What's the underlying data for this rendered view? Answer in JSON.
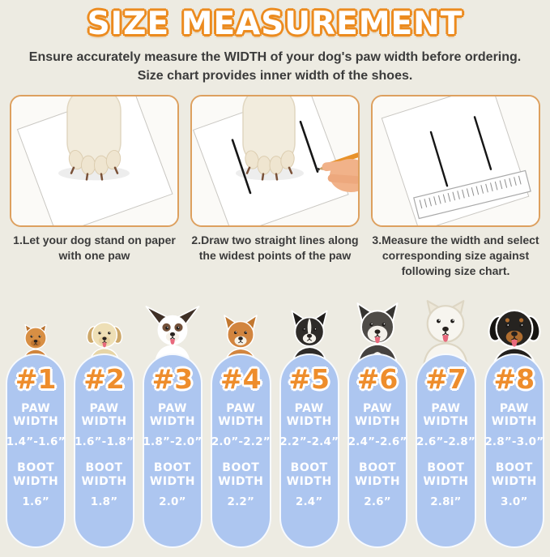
{
  "colors": {
    "background": "#edebe2",
    "accent_orange": "#ec8b1f",
    "number_orange": "#ee8d2c",
    "panel_border": "#dda05f",
    "pill_blue": "#adc6f0",
    "text_gray": "#3b3b3b",
    "pill_text": "#ffffff"
  },
  "title": {
    "text": "SIZE MEASUREMENT"
  },
  "intro": {
    "text": "Ensure accurately measure the WIDTH of your dog's paw width before ordering.\nSize chart provides inner width of the shoes."
  },
  "steps": [
    {
      "illustration": "dog-paw-on-paper-photo",
      "caption": "1.Let your dog stand on paper\nwith one paw"
    },
    {
      "illustration": "hand-drawing-lines-photo",
      "caption": "2.Draw two straight lines along\nthe widest points of the paw"
    },
    {
      "illustration": "ruler-measuring-photo",
      "caption": "3.Measure the width and select\ncorresponding size against\nfollowing size chart."
    }
  ],
  "size_chart": {
    "paw_label": "PAW\nWIDTH",
    "boot_label": "BOOT\nWIDTH",
    "columns": [
      {
        "size": "#1",
        "paw_width": "1.4”-1.6”",
        "boot_width": "1.6”",
        "dog": {
          "breed": "pomeranian",
          "earStyle": "small",
          "body": "#d0853d",
          "head": "#d88f44",
          "ear": "#b9722f",
          "muzzle": "#c07631",
          "tongue": false
        }
      },
      {
        "size": "#2",
        "paw_width": "1.6”-1.8”",
        "boot_width": "1.8”",
        "dog": {
          "breed": "golden-retriever-puppy",
          "earStyle": "floppy",
          "body": "#e7d5a6",
          "head": "#eedfb6",
          "ear": "#cda768",
          "muzzle": "#e6d0a0",
          "tongue": true
        }
      },
      {
        "size": "#3",
        "paw_width": "1.8”-2.0”",
        "boot_width": "2.0”",
        "dog": {
          "breed": "papillon",
          "earStyle": "wing",
          "body": "#ffffff",
          "head": "#ffffff",
          "ear": "#3f3026",
          "muzzle": "#f6f1e8",
          "eyePatch": "#73513a",
          "tongue": true
        }
      },
      {
        "size": "#4",
        "paw_width": "2.0”-2.2”",
        "boot_width": "2.2”",
        "dog": {
          "breed": "shiba-inu",
          "earStyle": "pointy",
          "body": "#d2853f",
          "head": "#d2853f",
          "ear": "#c2772f",
          "muzzle": "#f6f1e6",
          "chest": "#f6f1e6",
          "tongue": false
        }
      },
      {
        "size": "#5",
        "paw_width": "2.2”-2.4”",
        "boot_width": "2.4”",
        "dog": {
          "breed": "border-collie",
          "earStyle": "pointy",
          "body": "#2e2b28",
          "head": "#2e2b28",
          "ear": "#1f1d1b",
          "blaze": "#f4f1ea",
          "muzzle": "#f4f1ea",
          "chest": "#f4f1ea",
          "tongue": false
        }
      },
      {
        "size": "#6",
        "paw_width": "2.4”-2.6”",
        "boot_width": "2.6”",
        "dog": {
          "breed": "husky",
          "earStyle": "pointy",
          "body": "#454240",
          "head": "#4e4b47",
          "ear": "#363431",
          "mask": "#f3f0ea",
          "muzzle": "#f3f0ea",
          "chest": "#f3f0ea",
          "tongue": true
        }
      },
      {
        "size": "#7",
        "paw_width": "2.6”-2.8”",
        "boot_width": "2.8i”",
        "dog": {
          "breed": "samoyed",
          "earStyle": "small",
          "body": "#f7f5ef",
          "head": "#f7f5ef",
          "ear": "#ede7d8",
          "muzzle": "#f7f5ef",
          "outline": "#ddd6c4",
          "tongue": true
        }
      },
      {
        "size": "#8",
        "paw_width": "2.8”-3.0”",
        "boot_width": "3.0”",
        "dog": {
          "breed": "rottweiler",
          "earStyle": "floppy",
          "body": "#23201d",
          "head": "#262320",
          "ear": "#171512",
          "muzzle": "#b06d2f",
          "brow": "#b06d2f",
          "chest": "#a5662b",
          "tongue": true
        }
      }
    ]
  }
}
